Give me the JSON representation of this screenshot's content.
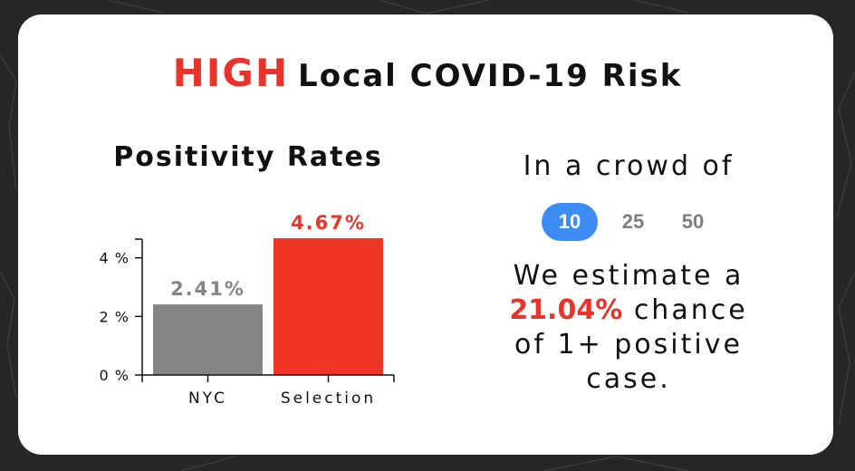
{
  "header": {
    "risk_level": "HIGH",
    "title_rest": "Local COVID-19 Risk",
    "risk_color": "#e8342a"
  },
  "chart_data": {
    "type": "bar",
    "title": "Positivity Rates",
    "categories": [
      "NYC",
      "Selection"
    ],
    "values": [
      2.41,
      4.67
    ],
    "value_labels": [
      "2.41%",
      "4.67%"
    ],
    "colors": [
      "#858585",
      "#ee3425"
    ],
    "label_colors": [
      "#858585",
      "#ee3425"
    ],
    "ylim": [
      0,
      4.67
    ],
    "yticks": [
      0,
      2,
      4
    ],
    "ytick_labels": [
      "0 %",
      "2 %",
      "4 %"
    ],
    "xlabel": "",
    "ylabel": ""
  },
  "crowd": {
    "title": "In a crowd of",
    "options": [
      "10",
      "25",
      "50"
    ],
    "selected": "10",
    "selected_color": "#3d8df5"
  },
  "estimate": {
    "prefix": "We estimate a",
    "percent": "21.04%",
    "suffix_1": "chance",
    "suffix_2": "of 1+ positive",
    "suffix_3": "case."
  }
}
